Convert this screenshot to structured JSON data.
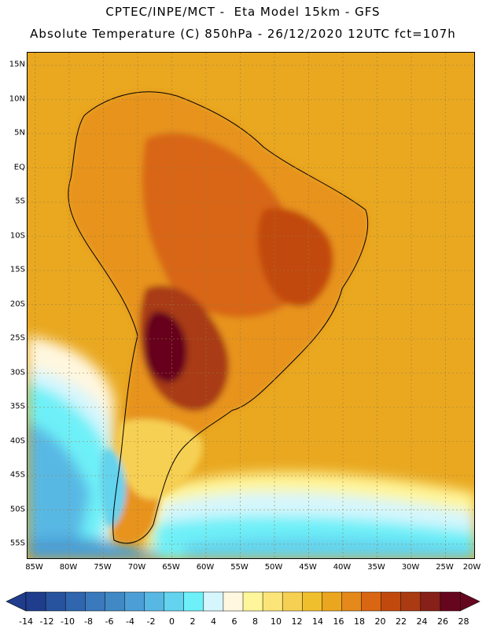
{
  "header": {
    "line1": "CPTEC/INPE/MCT -  Eta Model 15km - GFS",
    "line2": "Absolute Temperature (C) 850hPa - 26/12/2020 12UTC fct=107h"
  },
  "map": {
    "lat_labels": [
      "15N",
      "10N",
      "5N",
      "EQ",
      "5S",
      "10S",
      "15S",
      "20S",
      "25S",
      "30S",
      "35S",
      "40S",
      "45S",
      "50S",
      "55S"
    ],
    "lon_labels": [
      "85W",
      "80W",
      "75W",
      "70W",
      "65W",
      "60W",
      "55W",
      "50W",
      "45W",
      "40W",
      "35W",
      "30W",
      "25W",
      "20W"
    ]
  },
  "colorbar": {
    "labels": [
      "-14",
      "-12",
      "-10",
      "-8",
      "-6",
      "-4",
      "-2",
      "0",
      "2",
      "4",
      "6",
      "8",
      "10",
      "12",
      "14",
      "16",
      "18",
      "20",
      "22",
      "24",
      "26",
      "28"
    ],
    "colors": [
      "#1f3d8c",
      "#27539e",
      "#2f66ad",
      "#3a79bb",
      "#4089c5",
      "#4c9fd6",
      "#58b8e4",
      "#63d3ee",
      "#6ef0f8",
      "#d5f6fd",
      "#fff7df",
      "#fff59a",
      "#fbe579",
      "#f6d052",
      "#f0bf2e",
      "#eaa61e",
      "#e4891a",
      "#d86612",
      "#c2490d",
      "#a93a12",
      "#862018",
      "#66061e"
    ]
  }
}
